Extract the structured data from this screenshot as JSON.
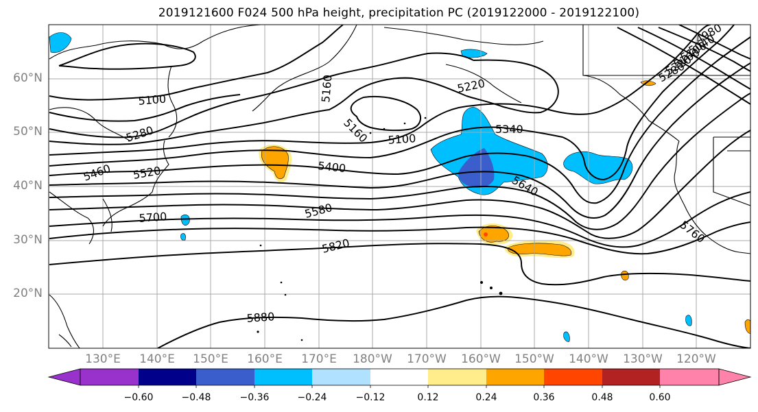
{
  "title": "2019121600 F024 500 hPa height, precipitation PC (2019122000 - 2019122100)",
  "map": {
    "lat_ticks": [
      {
        "label": "60°N",
        "value": 60
      },
      {
        "label": "50°N",
        "value": 50
      },
      {
        "label": "40°N",
        "value": 40
      },
      {
        "label": "30°N",
        "value": 30
      },
      {
        "label": "20°N",
        "value": 20
      }
    ],
    "lon_ticks": [
      {
        "label": "130°E",
        "value": 130
      },
      {
        "label": "140°E",
        "value": 140
      },
      {
        "label": "150°E",
        "value": 150
      },
      {
        "label": "160°E",
        "value": 160
      },
      {
        "label": "170°E",
        "value": 170
      },
      {
        "label": "180°W",
        "value": 180
      },
      {
        "label": "170°W",
        "value": 190
      },
      {
        "label": "160°W",
        "value": 200
      },
      {
        "label": "150°W",
        "value": 210
      },
      {
        "label": "140°W",
        "value": 220
      },
      {
        "label": "130°W",
        "value": 230
      },
      {
        "label": "120°W",
        "value": 240
      }
    ],
    "contour_labels": [
      "5100",
      "5280",
      "5460",
      "5520",
      "5700",
      "5160",
      "5160",
      "5100",
      "5220",
      "5340",
      "5400",
      "5580",
      "5820",
      "5640",
      "5880",
      "5760",
      "4980",
      "5040",
      "5100",
      "5160",
      "5220",
      "5280"
    ]
  },
  "colorbar": {
    "ticks": [
      "−0.60",
      "−0.48",
      "−0.36",
      "−0.24",
      "−0.12",
      "0.12",
      "0.24",
      "0.36",
      "0.48",
      "0.60"
    ],
    "colors": [
      "#9932cc",
      "#00008b",
      "#3a5fcd",
      "#00bfff",
      "#b0e2ff",
      "#ffffff",
      "#ffec8b",
      "#ffa500",
      "#ff4500",
      "#b22222",
      "#ff82ab"
    ]
  }
}
